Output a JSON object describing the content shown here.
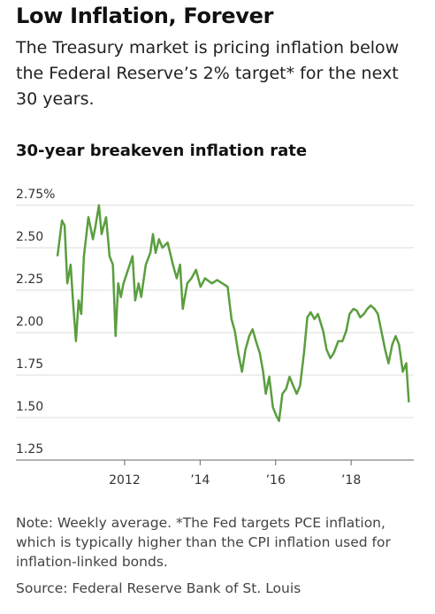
{
  "chart_data": {
    "type": "line",
    "title": "Low Inflation, Forever",
    "subtitle": "The Treasury market is pricing inflation below the Federal Reserve’s 2% target* for the next 30 years.",
    "chart_title": "30-year breakeven inflation rate",
    "note": "Note: Weekly average. *The Fed targets PCE inflation, which is typically higher than the CPI inflation used for inflation-linked bonds.",
    "source": "Source: Federal Reserve Bank of St. Louis",
    "x": [
      2010.22,
      2010.34,
      2010.41,
      2010.48,
      2010.57,
      2010.64,
      2010.71,
      2010.78,
      2010.85,
      2010.92,
      2011.04,
      2011.16,
      2011.23,
      2011.32,
      2011.39,
      2011.51,
      2011.6,
      2011.69,
      2011.76,
      2011.83,
      2011.9,
      2011.97,
      2012.09,
      2012.21,
      2012.28,
      2012.37,
      2012.44,
      2012.56,
      2012.68,
      2012.75,
      2012.82,
      2012.91,
      2013.0,
      2013.14,
      2013.28,
      2013.38,
      2013.47,
      2013.54,
      2013.66,
      2013.77,
      2013.89,
      2014.01,
      2014.13,
      2014.31,
      2014.45,
      2014.59,
      2014.73,
      2014.83,
      2014.92,
      2015.01,
      2015.11,
      2015.2,
      2015.3,
      2015.39,
      2015.48,
      2015.58,
      2015.67,
      2015.74,
      2015.83,
      2015.93,
      2016.02,
      2016.09,
      2016.18,
      2016.28,
      2016.37,
      2016.46,
      2016.56,
      2016.65,
      2016.75,
      2016.84,
      2016.93,
      2017.03,
      2017.12,
      2017.26,
      2017.35,
      2017.45,
      2017.54,
      2017.66,
      2017.77,
      2017.87,
      2017.96,
      2018.06,
      2018.15,
      2018.24,
      2018.34,
      2018.43,
      2018.52,
      2018.62,
      2018.71,
      2018.8,
      2018.9,
      2018.99,
      2019.09,
      2019.18,
      2019.27,
      2019.37,
      2019.46,
      2019.53
    ],
    "series": [
      {
        "color": "#5a9e3f",
        "values": [
          2.45,
          2.66,
          2.63,
          2.29,
          2.4,
          2.16,
          1.95,
          2.19,
          2.11,
          2.45,
          2.68,
          2.55,
          2.63,
          2.75,
          2.58,
          2.68,
          2.45,
          2.4,
          1.98,
          2.29,
          2.21,
          2.29,
          2.37,
          2.45,
          2.19,
          2.29,
          2.21,
          2.4,
          2.47,
          2.58,
          2.47,
          2.55,
          2.5,
          2.53,
          2.4,
          2.32,
          2.4,
          2.14,
          2.29,
          2.32,
          2.37,
          2.27,
          2.32,
          2.29,
          2.31,
          2.29,
          2.27,
          2.08,
          2.01,
          1.88,
          1.77,
          1.9,
          1.98,
          2.02,
          1.95,
          1.88,
          1.77,
          1.64,
          1.74,
          1.56,
          1.51,
          1.48,
          1.64,
          1.67,
          1.74,
          1.69,
          1.64,
          1.69,
          1.88,
          2.09,
          2.12,
          2.08,
          2.11,
          2.01,
          1.9,
          1.85,
          1.88,
          1.95,
          1.95,
          2.01,
          2.11,
          2.14,
          2.13,
          2.09,
          2.11,
          2.14,
          2.16,
          2.14,
          2.11,
          2.01,
          1.9,
          1.82,
          1.93,
          1.98,
          1.93,
          1.77,
          1.82,
          1.59
        ]
      }
    ],
    "xlim": [
      2009.12,
      2019.66
    ],
    "xticks": [
      2012,
      {
        "value": 2014,
        "label": "’14"
      },
      {
        "value": 2016,
        "label": "’16"
      },
      {
        "value": 2018,
        "label": "’18"
      }
    ],
    "ylim": [
      1.25,
      2.75
    ],
    "yticks": [
      1.25,
      {
        "value": 1.5,
        "label": "1.50"
      },
      1.75,
      {
        "value": 2.0,
        "label": "2.00"
      },
      2.25,
      {
        "value": 2.5,
        "label": "2.50"
      },
      {
        "value": 2.75,
        "label": "2.75%"
      }
    ],
    "grid": true
  }
}
